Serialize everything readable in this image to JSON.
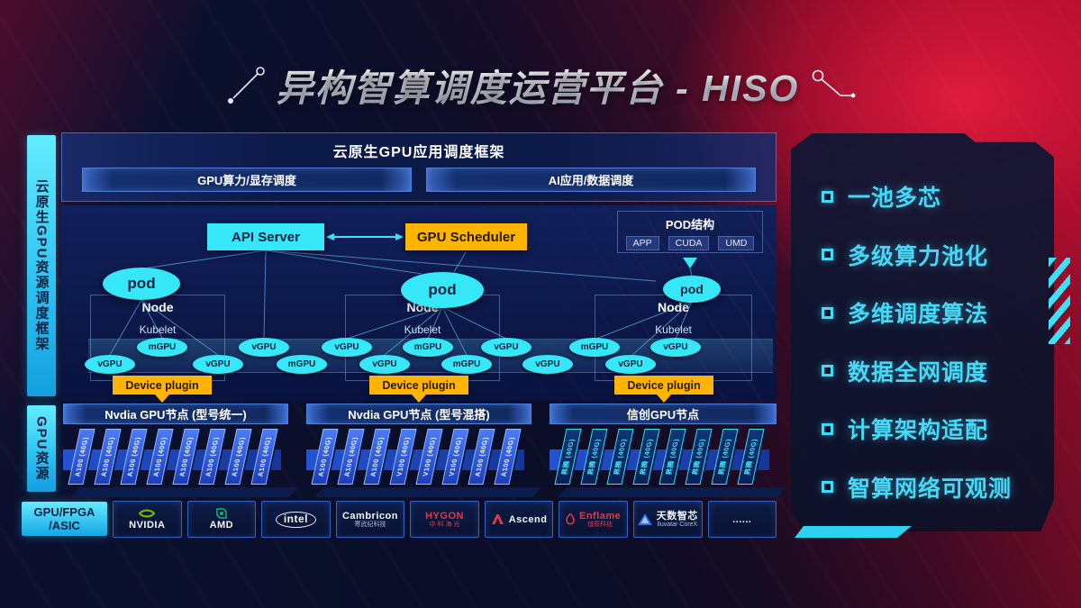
{
  "title": "异构智算调度运营平台 - HISO",
  "left_rail": {
    "framework": "云原生GPU资源调度框架",
    "gpu_resource": "GPU资源",
    "hardware_line1": "GPU/FPGA",
    "hardware_line2": "/ASIC"
  },
  "app_frame": {
    "title": "云原生GPU应用调度框架",
    "button_left": "GPU算力/显存调度",
    "button_right": "AI应用/数据调度"
  },
  "control": {
    "api_server": "API Server",
    "gpu_scheduler": "GPU Scheduler",
    "pod_box_title": "POD结构",
    "pod_box_items": [
      "APP",
      "CUDA",
      "UMD"
    ]
  },
  "nodes": [
    {
      "pod": "pod",
      "name": "Node",
      "agent": "Kubelet",
      "plugin": "Device plugin"
    },
    {
      "pod": "pod",
      "name": "Node",
      "agent": "Kubelet",
      "plugin": "Device plugin"
    },
    {
      "pod": "pod",
      "name": "Node",
      "agent": "Kubelet",
      "plugin": "Device plugin"
    }
  ],
  "gpu_units": {
    "top_row": [
      "mGPU",
      "vGPU",
      "vGPU",
      "mGPU",
      "vGPU",
      "mGPU",
      "vGPU"
    ],
    "bottom_row": [
      "vGPU",
      "vGPU",
      "mGPU",
      "vGPU",
      "mGPU",
      "vGPU",
      "vGPU"
    ]
  },
  "gpu_groups": [
    {
      "header": "Nvdia GPU节点 (型号统一)",
      "theme": "blue",
      "cards": [
        "A100 (40G)",
        "A100 (40G)",
        "A100 (40G)",
        "A100 (40G)",
        "A100 (40G)",
        "A100 (40G)",
        "A100 (40G)",
        "A100 (40G)"
      ]
    },
    {
      "header": "Nvdia GPU节点 (型号混搭)",
      "theme": "blue",
      "cards": [
        "A100 (40G)",
        "A100 (40G)",
        "A100 (40G)",
        "V100 (40G)",
        "V100 (40G)",
        "V100 (40G)",
        "A100 (40G)",
        "A100 (40G)"
      ]
    },
    {
      "header": "信创GPU节点",
      "theme": "cyan",
      "cards": [
        "昇腾 (40G)",
        "昇腾 (40G)",
        "昇腾 (40G)",
        "昇腾 (40G)",
        "昇腾 (40G)",
        "昇腾 (40G)",
        "昇腾 (40G)",
        "昇腾 (40G)"
      ]
    }
  ],
  "vendors": [
    {
      "id": "nvidia",
      "icon": "nvidia-logo-icon",
      "lines": [
        "NVIDIA"
      ]
    },
    {
      "id": "amd",
      "icon": "amd-logo-icon",
      "lines": [
        "AMD"
      ]
    },
    {
      "id": "intel",
      "icon": "intel-logo-icon",
      "lines": [
        "intel"
      ]
    },
    {
      "id": "cambricon",
      "lines": [
        "Cambricon",
        "寒武纪科技"
      ]
    },
    {
      "id": "hygon",
      "lines": [
        "HYGON",
        "中 科 海 光"
      ],
      "color": "#e03a44"
    },
    {
      "id": "ascend",
      "icon": "ascend-logo-icon",
      "lines": [
        "Ascend"
      ]
    },
    {
      "id": "enflame",
      "icon": "enflame-logo-icon",
      "lines": [
        "Enflame",
        "燧原科技"
      ],
      "color": "#e03a44"
    },
    {
      "id": "iluvatar",
      "icon": "iluvatar-logo-icon",
      "lines": [
        "天数智芯",
        "Iluvatar CoreX"
      ]
    },
    {
      "id": "more",
      "lines": [
        "......"
      ]
    }
  ],
  "features": [
    "一池多芯",
    "多级算力池化",
    "多维调度算法",
    "数据全网调度",
    "计算架构适配",
    "智算网络可观测"
  ],
  "colors": {
    "accent_cyan": "#3ce1f6",
    "accent_orange": "#ffb302",
    "card_blue": "#2b5df0",
    "brand_red": "#bf1433",
    "nvidia_green": "#76b900"
  }
}
